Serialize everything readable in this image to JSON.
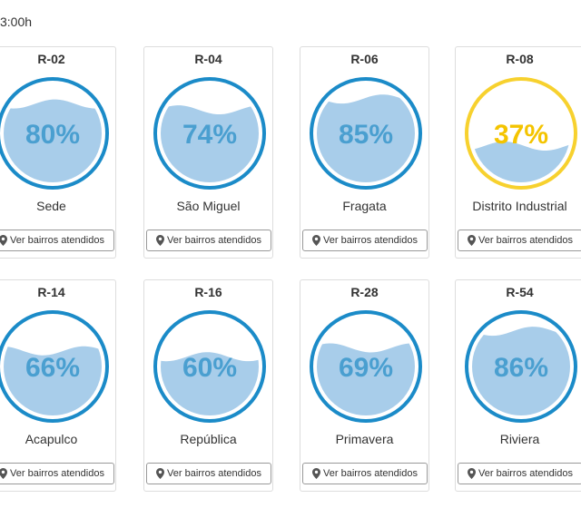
{
  "header": {
    "timestamp": "3:00h"
  },
  "colors": {
    "ring_normal": "#1b8bc8",
    "ring_low": "#f7d12e",
    "water": "#a8cdea",
    "text_normal": "#4a9fd0",
    "text_low": "#f4c400"
  },
  "button_label": "Ver bairros atendidos",
  "button_icon": "map-marker-icon",
  "reservoirs": [
    {
      "code": "R-02",
      "name": "Sede",
      "level": 80,
      "level_text": "80%",
      "status": "normal"
    },
    {
      "code": "R-04",
      "name": "São Miguel",
      "level": 74,
      "level_text": "74%",
      "status": "normal"
    },
    {
      "code": "R-06",
      "name": "Fragata",
      "level": 85,
      "level_text": "85%",
      "status": "normal"
    },
    {
      "code": "R-08",
      "name": "Distrito Industrial",
      "level": 37,
      "level_text": "37%",
      "status": "low"
    },
    {
      "code": "R-14",
      "name": "Acapulco",
      "level": 66,
      "level_text": "66%",
      "status": "normal"
    },
    {
      "code": "R-16",
      "name": "República",
      "level": 60,
      "level_text": "60%",
      "status": "normal"
    },
    {
      "code": "R-28",
      "name": "Primavera",
      "level": 69,
      "level_text": "69%",
      "status": "normal"
    },
    {
      "code": "R-54",
      "name": "Riviera",
      "level": 86,
      "level_text": "86%",
      "status": "normal"
    }
  ]
}
